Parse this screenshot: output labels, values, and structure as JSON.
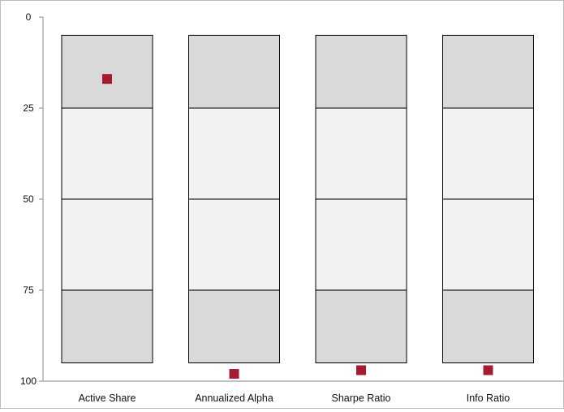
{
  "chart_data": {
    "type": "percentile-range",
    "title": "",
    "xlabel": "",
    "ylabel": "",
    "ylim": [
      0,
      100
    ],
    "y_inverted": true,
    "yticks": [
      0,
      25,
      50,
      75,
      100
    ],
    "categories": [
      "Active Share",
      "Annualized Alpha",
      "Sharpe Ratio",
      "Info Ratio"
    ],
    "box_range": [
      5,
      95
    ],
    "quartile_bands": [
      {
        "from": 5,
        "to": 25,
        "color": "#d9d9d9"
      },
      {
        "from": 25,
        "to": 50,
        "color": "#f2f2f2"
      },
      {
        "from": 50,
        "to": 75,
        "color": "#f2f2f2"
      },
      {
        "from": 75,
        "to": 95,
        "color": "#d9d9d9"
      }
    ],
    "marker_color": "#a51c30",
    "values": [
      17,
      98,
      97,
      97
    ],
    "grid": false,
    "legend": "none"
  }
}
